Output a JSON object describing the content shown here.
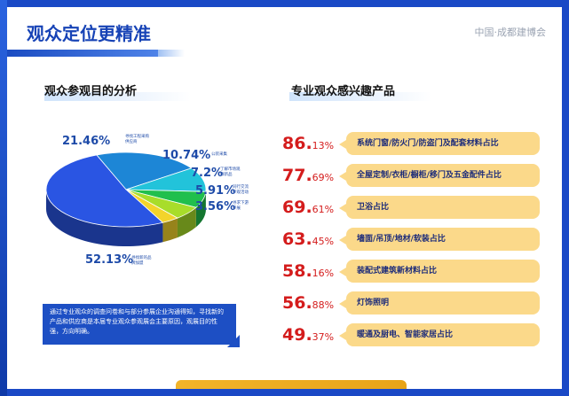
{
  "header": {
    "title": "观众定位更精准",
    "brand": "中国·成都建博会"
  },
  "left": {
    "section_title": "观众参观目的分析",
    "pie": [
      {
        "percent": "21.46%",
        "label": "寻找工程采购供应商",
        "value": 21.46,
        "color": "#1d86d6"
      },
      {
        "percent": "10.74%",
        "label": "公装采集",
        "value": 10.74,
        "color": "#22c3da"
      },
      {
        "percent": "7.2%",
        "label": "了解市场观察新品",
        "value": 7.2,
        "color": "#20bf4d"
      },
      {
        "percent": "5.91%",
        "label": "同行交流参观活动",
        "value": 5.91,
        "color": "#a8dd2a"
      },
      {
        "percent": "3.56%",
        "label": "寻求下游参展",
        "value": 3.56,
        "color": "#f3d42b"
      },
      {
        "percent": "52.13%",
        "label": "寻找新的品牌加盟",
        "value": 52.13,
        "color": "#2a55e3"
      }
    ],
    "note": "通过专业观众的调查问卷和与部分参展企业沟通得知，寻找新的产品和供应商是本届专业观众参观展会主要原因，观展目的性强，方向明确。"
  },
  "right": {
    "section_title": "专业观众感兴趣产品",
    "items": [
      {
        "int": "86.",
        "dec": "13%",
        "label": "系统门窗/防火门/防盗门及配套材料占比"
      },
      {
        "int": "77.",
        "dec": "69%",
        "label": "全屋定制/衣柜/橱柜/移门及五金配件占比"
      },
      {
        "int": "69.",
        "dec": "61%",
        "label": "卫浴占比"
      },
      {
        "int": "63.",
        "dec": "45%",
        "label": "墙面/吊顶/地材/软装占比"
      },
      {
        "int": "58.",
        "dec": "16%",
        "label": "装配式建筑新材料占比"
      },
      {
        "int": "56.",
        "dec": "88%",
        "label": "灯饰照明"
      },
      {
        "int": "49.",
        "dec": "37%",
        "label": "暖通及厨电、智能家居占比"
      }
    ]
  }
}
